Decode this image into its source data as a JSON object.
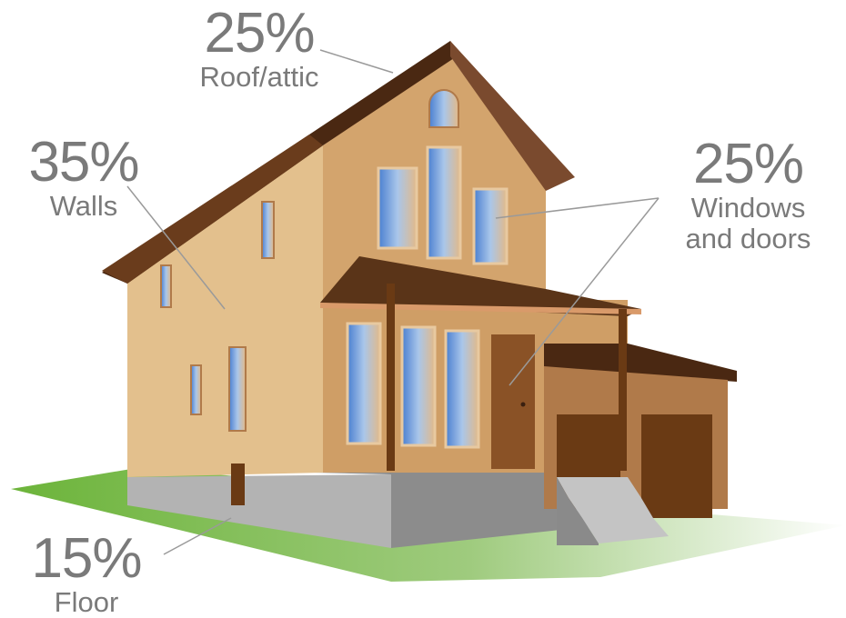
{
  "callouts": {
    "roof": {
      "percent": "25%",
      "label": "Roof/attic"
    },
    "walls": {
      "percent": "35%",
      "label": "Walls"
    },
    "windows": {
      "percent": "25%",
      "label_line1": "Windows",
      "label_line2": "and doors"
    },
    "floor": {
      "percent": "15%",
      "label": "Floor"
    }
  },
  "colors": {
    "text": "#7a7a7a",
    "leader": "#9a9a9a",
    "wall_light": "#e4c38f",
    "wall_mid": "#d4a66e",
    "wall_shade": "#c9965d",
    "roof": "#5a3418",
    "roof_edge": "#7a4a2a",
    "foundation": "#9b9b9b",
    "lawn": "#7ab84a",
    "door": "#8a5226",
    "garage": "#b07a4a",
    "glass": "#6a9ad8"
  }
}
